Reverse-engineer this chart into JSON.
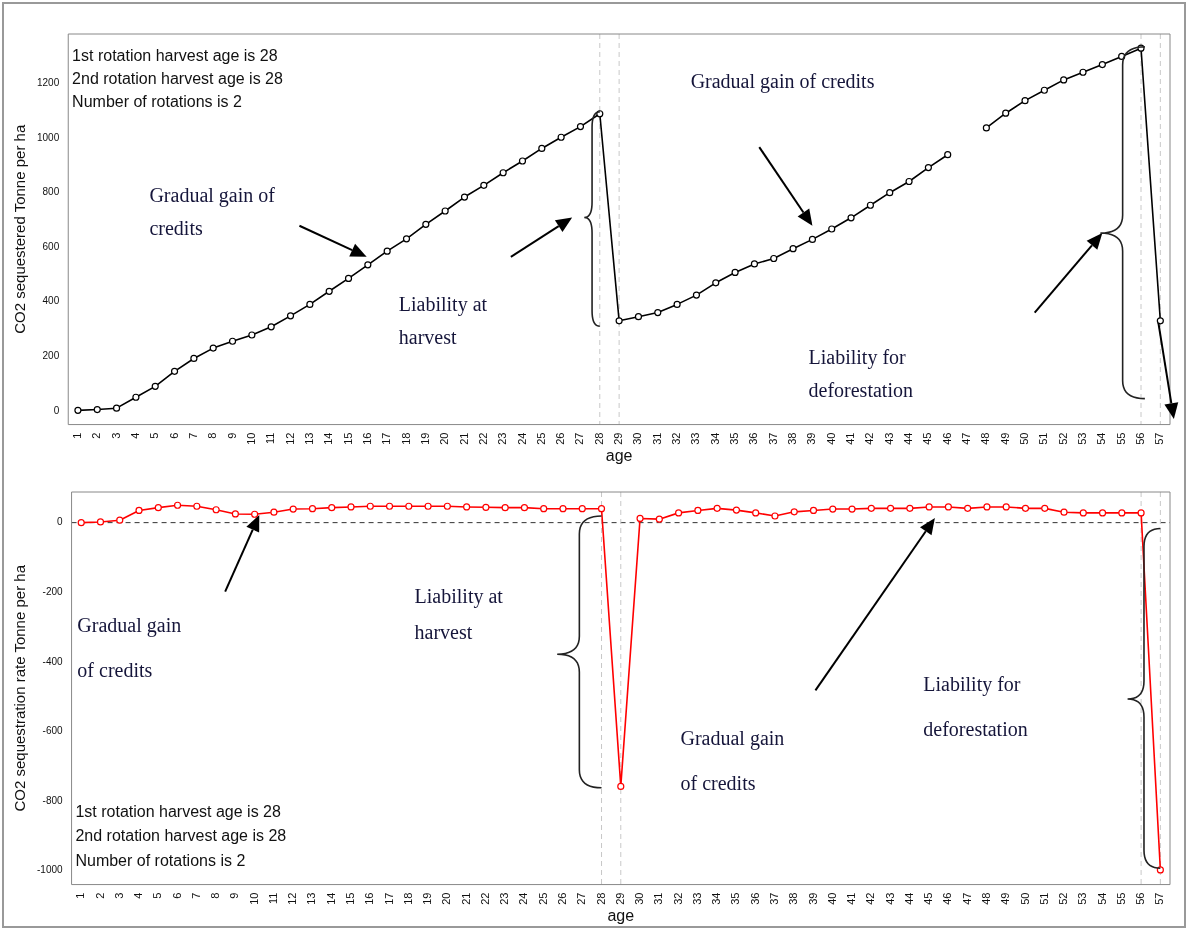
{
  "chart_data": [
    {
      "type": "line",
      "xlabel": "age",
      "ylabel": "CO2 sequestered Tonne per ha",
      "categories": [
        "1",
        "2",
        "3",
        "4",
        "5",
        "6",
        "7",
        "8",
        "9",
        "10",
        "11",
        "12",
        "13",
        "14",
        "15",
        "16",
        "17",
        "18",
        "19",
        "20",
        "21",
        "22",
        "23",
        "24",
        "25",
        "26",
        "27",
        "28",
        "29",
        "30",
        "31",
        "32",
        "33",
        "34",
        "35",
        "36",
        "37",
        "38",
        "39",
        "40",
        "41",
        "42",
        "43",
        "44",
        "45",
        "46",
        "47",
        "48",
        "49",
        "50",
        "51",
        "52",
        "53",
        "54",
        "55",
        "56",
        "57"
      ],
      "series": [
        {
          "color": "#000000",
          "values": [
            2,
            5,
            10,
            50,
            90,
            145,
            192,
            230,
            255,
            278,
            308,
            348,
            390,
            438,
            485,
            535,
            585,
            630,
            683,
            732,
            783,
            826,
            872,
            915,
            961,
            1002,
            1041,
            1088,
            330,
            345,
            360,
            390,
            424,
            469,
            507,
            538,
            558,
            594,
            628,
            666,
            707,
            753,
            799,
            840,
            891,
            938,
            null,
            1036,
            1090,
            1136,
            1174,
            1212,
            1240,
            1268,
            1298,
            1328,
            330
          ]
        }
      ],
      "ylim": [
        -50,
        1380
      ],
      "yticks": [
        0,
        200,
        400,
        600,
        800,
        1000,
        1200
      ],
      "marker": "circle",
      "ref_lines": [
        {
          "axis": "x",
          "value": "28",
          "color": "#c8c8c8",
          "line_style": "dashed"
        },
        {
          "axis": "x",
          "value": "29",
          "color": "#c8c8c8",
          "line_style": "dashed"
        },
        {
          "axis": "x",
          "value": "56",
          "color": "#c8c8c8",
          "line_style": "dashed"
        },
        {
          "axis": "x",
          "value": "57",
          "color": "#c8c8c8",
          "line_style": "dashed"
        }
      ],
      "annotations": [
        "1st rotation harvest age is 28",
        "2nd rotation harvest age is 28",
        "Number of rotations is 2",
        "Gradual gain of credits",
        "Liability at harvest",
        "Gradual gain of credits",
        "Liability for deforestation"
      ]
    },
    {
      "type": "line",
      "xlabel": "age",
      "ylabel": "CO2 sequestration rate Tonne per ha",
      "categories": [
        "1",
        "2",
        "3",
        "4",
        "5",
        "6",
        "7",
        "8",
        "9",
        "10",
        "11",
        "12",
        "13",
        "14",
        "15",
        "16",
        "17",
        "18",
        "19",
        "20",
        "21",
        "22",
        "23",
        "24",
        "25",
        "26",
        "27",
        "28",
        "29",
        "30",
        "31",
        "32",
        "33",
        "34",
        "35",
        "36",
        "37",
        "38",
        "39",
        "40",
        "41",
        "42",
        "43",
        "44",
        "45",
        "46",
        "47",
        "48",
        "49",
        "50",
        "51",
        "52",
        "53",
        "54",
        "55",
        "56",
        "57"
      ],
      "series": [
        {
          "color": "#ff0000",
          "values": [
            0,
            2,
            7,
            35,
            43,
            50,
            47,
            37,
            25,
            24,
            30,
            39,
            40,
            43,
            45,
            47,
            47,
            47,
            47,
            47,
            45,
            44,
            43,
            43,
            40,
            40,
            40,
            40,
            -758,
            12,
            10,
            28,
            35,
            41,
            36,
            28,
            19,
            31,
            35,
            39,
            39,
            41,
            41,
            41,
            45,
            45,
            41,
            45,
            45,
            41,
            41,
            30,
            28,
            28,
            28,
            28,
            -998
          ]
        }
      ],
      "ylim": [
        -1040,
        88
      ],
      "yticks": [
        0,
        -200,
        -400,
        -600,
        -800,
        -1000
      ],
      "marker": "circle",
      "ref_lines": [
        {
          "axis": "y",
          "value": 0,
          "color": "#333333",
          "line_style": "dashed"
        },
        {
          "axis": "x",
          "value": "28",
          "color": "#c8c8c8",
          "line_style": "dashed"
        },
        {
          "axis": "x",
          "value": "29",
          "color": "#c8c8c8",
          "line_style": "dashed"
        },
        {
          "axis": "x",
          "value": "56",
          "color": "#c8c8c8",
          "line_style": "dashed"
        },
        {
          "axis": "x",
          "value": "57",
          "color": "#c8c8c8",
          "line_style": "dashed"
        }
      ],
      "annotations": [
        "Gradual gain of credits",
        "Liability at harvest",
        "Gradual gain of credits",
        "Liability for deforestation",
        "1st rotation harvest age is 28",
        "2nd rotation harvest age is 28",
        "Number of rotations is 2"
      ]
    }
  ]
}
